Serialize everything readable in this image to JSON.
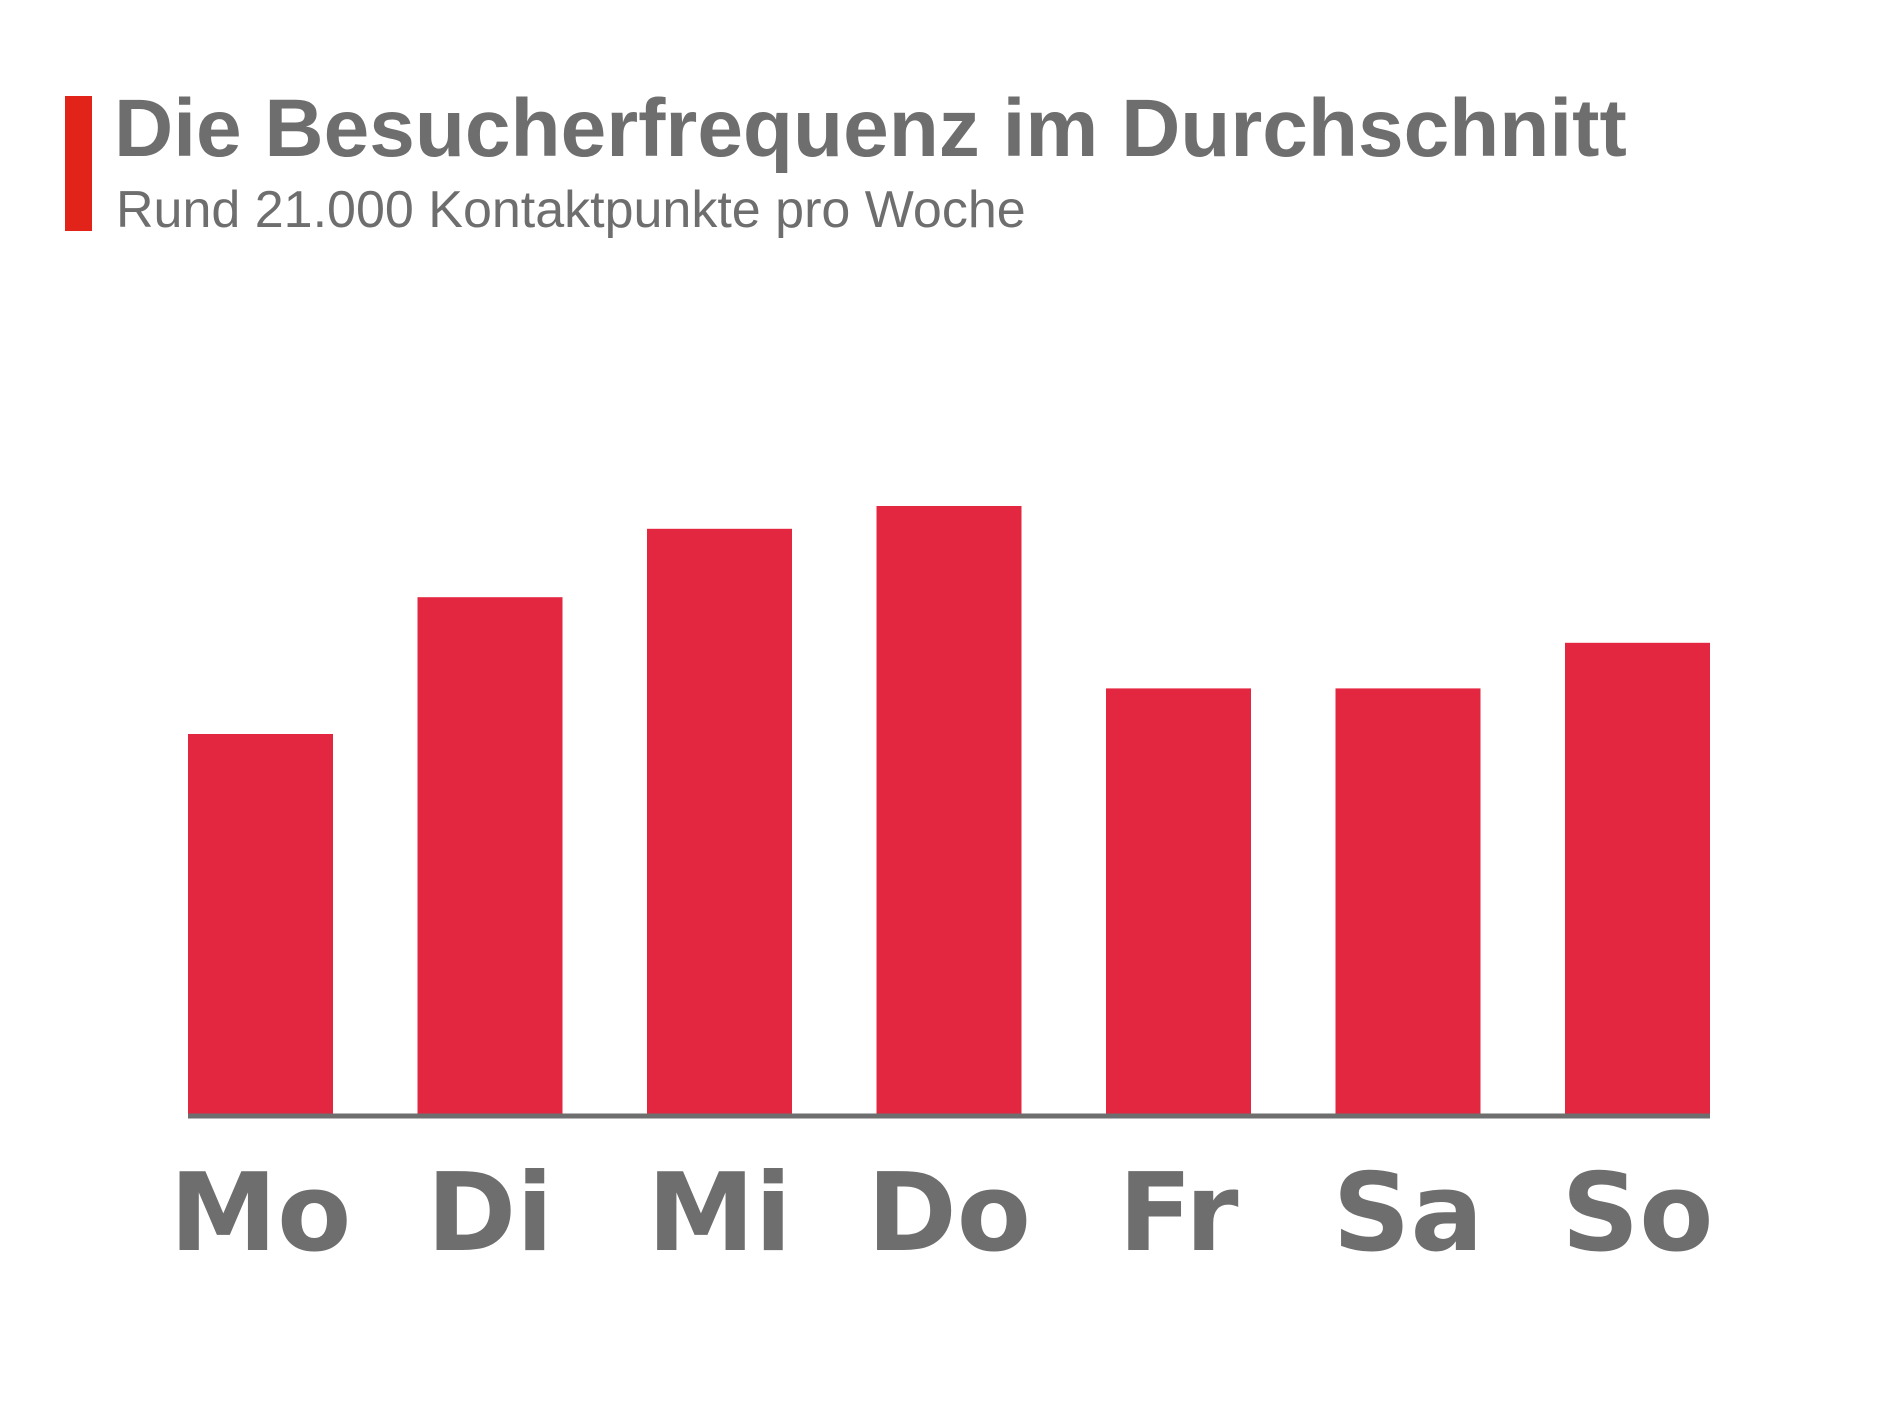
{
  "header": {
    "title": "Die Besucherfrequenz im Durchschnitt",
    "subtitle": "Rund 21.000 Kontaktpunkte pro Woche"
  },
  "colors": {
    "accent": "#E2231A",
    "bar": "#E42741",
    "text": "#6E6E6E",
    "axis": "#6E6E6E",
    "background": "#FFFFFF"
  },
  "chart_data": {
    "type": "bar",
    "categories": [
      "Mo",
      "Di",
      "Mi",
      "Do",
      "Fr",
      "Sa",
      "So"
    ],
    "values": [
      2.5,
      3.4,
      3.85,
      4.0,
      2.8,
      2.8,
      3.1
    ],
    "ylim": [
      0,
      4.5
    ],
    "grid": false,
    "legend": "none",
    "y_axis_labels": "none"
  }
}
